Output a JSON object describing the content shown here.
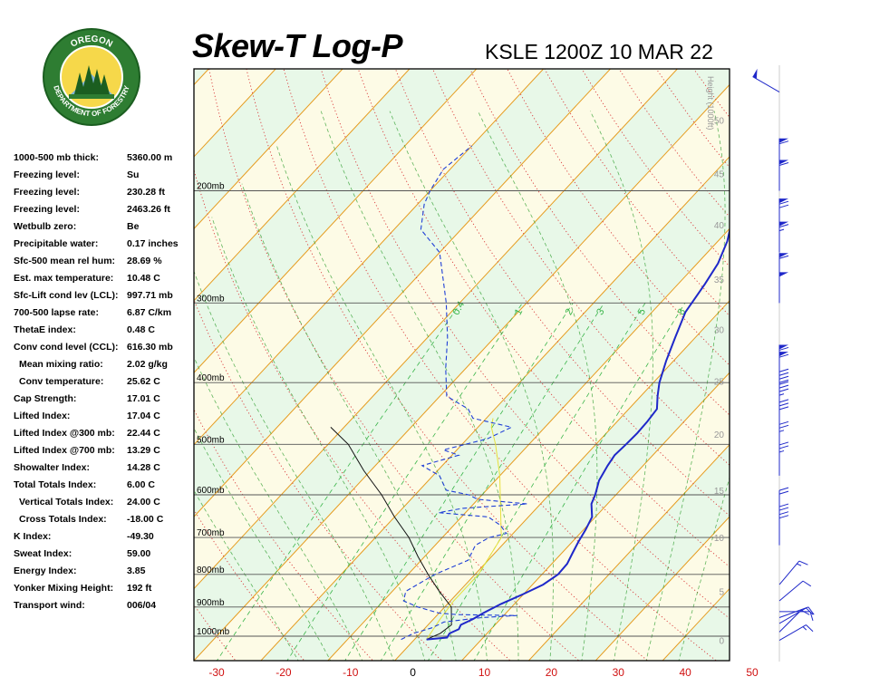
{
  "header": {
    "title": "Skew-T Log-P",
    "station_time": "KSLE 1200Z 10 MAR 22"
  },
  "logo": {
    "top_text": "OREGON",
    "bottom_text": "DEPARTMENT OF FORESTRY",
    "ring_color": "#2e7d32",
    "inner_color": "#f6d84a"
  },
  "indices": [
    {
      "label": "1000-500 mb thick:",
      "value": "5360.00 m"
    },
    {
      "label": "Freezing level:",
      "value": "Su"
    },
    {
      "label": "Freezing level:",
      "value": "230.28 ft"
    },
    {
      "label": "Freezing level:",
      "value": "2463.26 ft"
    },
    {
      "label": "Wetbulb zero:",
      "value": "Be"
    },
    {
      "label": "Precipitable water:",
      "value": "0.17 inches"
    },
    {
      "label": "Sfc-500 mean rel hum:",
      "value": "28.69 %"
    },
    {
      "label": "Est. max temperature:",
      "value": "10.48 C"
    },
    {
      "label": "Sfc-Lift cond lev (LCL):",
      "value": "997.71 mb"
    },
    {
      "label": "700-500 lapse rate:",
      "value": "6.87 C/km"
    },
    {
      "label": "ThetaE index:",
      "value": "0.48 C"
    },
    {
      "label": "Conv cond level (CCL):",
      "value": "616.30 mb"
    },
    {
      "label": "Mean mixing ratio:",
      "value": "2.02 g/kg",
      "indent": true
    },
    {
      "label": "Conv temperature:",
      "value": "25.62 C",
      "indent": true
    },
    {
      "label": "Cap Strength:",
      "value": "17.01 C"
    },
    {
      "label": "Lifted Index:",
      "value": "17.04 C"
    },
    {
      "label": "Lifted Index @300 mb:",
      "value": "22.44 C"
    },
    {
      "label": "Lifted Index @700 mb:",
      "value": "13.29 C"
    },
    {
      "label": "Showalter Index:",
      "value": "14.28 C"
    },
    {
      "label": "Total Totals Index:",
      "value": "6.00 C"
    },
    {
      "label": "Vertical Totals Index:",
      "value": "24.00 C",
      "indent": true
    },
    {
      "label": "Cross Totals Index:",
      "value": "-18.00 C",
      "indent": true
    },
    {
      "label": "K Index:",
      "value": "-49.30"
    },
    {
      "label": "Sweat Index:",
      "value": "59.00"
    },
    {
      "label": "Energy Index:",
      "value": "3.85"
    },
    {
      "label": "Yonker Mixing Height:",
      "value": "192 ft"
    },
    {
      "label": "Transport wind:",
      "value": "006/04"
    }
  ],
  "chart_data": {
    "type": "line",
    "xlim": [
      -30,
      50
    ],
    "x_ticks": [
      -30,
      -20,
      -10,
      0,
      10,
      20,
      30,
      40,
      50
    ],
    "pressure_levels": [
      {
        "p": 200,
        "label": "200mb"
      },
      {
        "p": 300,
        "label": "300mb"
      },
      {
        "p": 400,
        "label": "400mb"
      },
      {
        "p": 500,
        "label": "500mb"
      },
      {
        "p": 600,
        "label": "600mb"
      },
      {
        "p": 700,
        "label": "700mb"
      },
      {
        "p": 800,
        "label": "800mb"
      },
      {
        "p": 900,
        "label": "900mb"
      },
      {
        "p": 1000,
        "label": "1000mb"
      }
    ],
    "height_axis_label": "Height (1000ft)",
    "height_ticks": [
      {
        "kft": 0,
        "p": 1015
      },
      {
        "kft": 5,
        "p": 850
      },
      {
        "kft": 10,
        "p": 700
      },
      {
        "kft": 15,
        "p": 590
      },
      {
        "kft": 20,
        "p": 482
      },
      {
        "kft": 25,
        "p": 398
      },
      {
        "kft": 30,
        "p": 330
      },
      {
        "kft": 35,
        "p": 275
      },
      {
        "kft": 40,
        "p": 226
      },
      {
        "kft": 45,
        "p": 188
      },
      {
        "kft": 50,
        "p": 155
      }
    ],
    "mixing_ratio_labels": [
      "0.4",
      "1",
      "2",
      "3",
      "5",
      "8"
    ],
    "temperature": [
      [
        1012,
        1.8
      ],
      [
        1005,
        4.6
      ],
      [
        990,
        4.4
      ],
      [
        975,
        5.2
      ],
      [
        960,
        4.9
      ],
      [
        940,
        5.9
      ],
      [
        920,
        6.6
      ],
      [
        890,
        8.0
      ],
      [
        860,
        9.9
      ],
      [
        830,
        11.6
      ],
      [
        800,
        12.4
      ],
      [
        770,
        12.3
      ],
      [
        740,
        11.6
      ],
      [
        710,
        10.9
      ],
      [
        680,
        10.3
      ],
      [
        650,
        9.5
      ],
      [
        620,
        7.6
      ],
      [
        600,
        6.9
      ],
      [
        570,
        5.5
      ],
      [
        540,
        4.7
      ],
      [
        520,
        4.3
      ],
      [
        500,
        4.5
      ],
      [
        480,
        4.6
      ],
      [
        460,
        4.5
      ],
      [
        440,
        4.2
      ],
      [
        420,
        2.5
      ],
      [
        400,
        0.9
      ],
      [
        370,
        -1.1
      ],
      [
        340,
        -3.0
      ],
      [
        310,
        -5.0
      ],
      [
        280,
        -6.0
      ],
      [
        260,
        -6.9
      ],
      [
        240,
        -8.6
      ],
      [
        224,
        -10.6
      ],
      [
        210,
        -9.3
      ],
      [
        200,
        -7.4
      ],
      [
        180,
        -5.6
      ],
      [
        160,
        -5.0
      ],
      [
        148,
        -6.3
      ]
    ],
    "dewpoint": [
      [
        1012,
        -2.0
      ],
      [
        990,
        -1.0
      ],
      [
        970,
        1.0
      ],
      [
        950,
        2.0
      ],
      [
        935,
        7.0
      ],
      [
        928,
        12.0
      ],
      [
        925,
        3.0
      ],
      [
        920,
        0.0
      ],
      [
        900,
        -4.0
      ],
      [
        880,
        -7.0
      ],
      [
        850,
        -8.0
      ],
      [
        800,
        -6.0
      ],
      [
        760,
        -3.0
      ],
      [
        720,
        -4.0
      ],
      [
        700,
        -3.0
      ],
      [
        690,
        -1.0
      ],
      [
        670,
        -3.0
      ],
      [
        650,
        -6.0
      ],
      [
        640,
        -14.0
      ],
      [
        630,
        -11.0
      ],
      [
        620,
        -2.0
      ],
      [
        610,
        -10.0
      ],
      [
        600,
        -12.0
      ],
      [
        590,
        -16.0
      ],
      [
        560,
        -19.0
      ],
      [
        540,
        -23.0
      ],
      [
        520,
        -19.0
      ],
      [
        510,
        -22.0
      ],
      [
        490,
        -17.0
      ],
      [
        470,
        -15.0
      ],
      [
        455,
        -22.0
      ],
      [
        440,
        -24.0
      ],
      [
        420,
        -29.0
      ],
      [
        380,
        -33.0
      ],
      [
        340,
        -37.0
      ],
      [
        300,
        -42.0
      ],
      [
        250,
        -50.0
      ],
      [
        230,
        -56.0
      ],
      [
        210,
        -59.0
      ],
      [
        200,
        -60.0
      ],
      [
        185,
        -61.0
      ],
      [
        170,
        -60.0
      ]
    ],
    "parcel": [
      [
        1012,
        1.8
      ],
      [
        990,
        3.0
      ],
      [
        960,
        3.5
      ],
      [
        900,
        1.0
      ],
      [
        850,
        -3.0
      ],
      [
        800,
        -7.0
      ],
      [
        750,
        -11.0
      ],
      [
        700,
        -15.0
      ],
      [
        650,
        -20.0
      ],
      [
        600,
        -25.0
      ],
      [
        550,
        -31.0
      ],
      [
        500,
        -37.0
      ],
      [
        470,
        -42.0
      ]
    ],
    "winds": [
      {
        "p": 1015,
        "dir": 60,
        "spd": 15
      },
      {
        "p": 985,
        "dir": 45,
        "spd": 10
      },
      {
        "p": 955,
        "dir": 60,
        "spd": 10
      },
      {
        "p": 935,
        "dir": 70,
        "spd": 10
      },
      {
        "p": 915,
        "dir": 90,
        "spd": 10
      },
      {
        "p": 880,
        "dir": 50,
        "spd": 10
      },
      {
        "p": 830,
        "dir": 40,
        "spd": 15
      },
      {
        "p": 720,
        "dir": 0,
        "spd": 20
      },
      {
        "p": 700,
        "dir": 0,
        "spd": 20
      },
      {
        "p": 660,
        "dir": 0,
        "spd": 20
      },
      {
        "p": 560,
        "dir": 0,
        "spd": 25
      },
      {
        "p": 520,
        "dir": 0,
        "spd": 25
      },
      {
        "p": 480,
        "dir": 0,
        "spd": 30
      },
      {
        "p": 450,
        "dir": 0,
        "spd": 35
      },
      {
        "p": 430,
        "dir": 0,
        "spd": 40
      },
      {
        "p": 400,
        "dir": 0,
        "spd": 60
      },
      {
        "p": 390,
        "dir": 0,
        "spd": 60
      },
      {
        "p": 300,
        "dir": 0,
        "spd": 50
      },
      {
        "p": 280,
        "dir": 0,
        "spd": 60
      },
      {
        "p": 250,
        "dir": 0,
        "spd": 65
      },
      {
        "p": 230,
        "dir": 0,
        "spd": 70
      },
      {
        "p": 200,
        "dir": 0,
        "spd": 60
      },
      {
        "p": 185,
        "dir": 0,
        "spd": 60
      },
      {
        "p": 140,
        "dir": 300,
        "spd": 50
      }
    ]
  }
}
